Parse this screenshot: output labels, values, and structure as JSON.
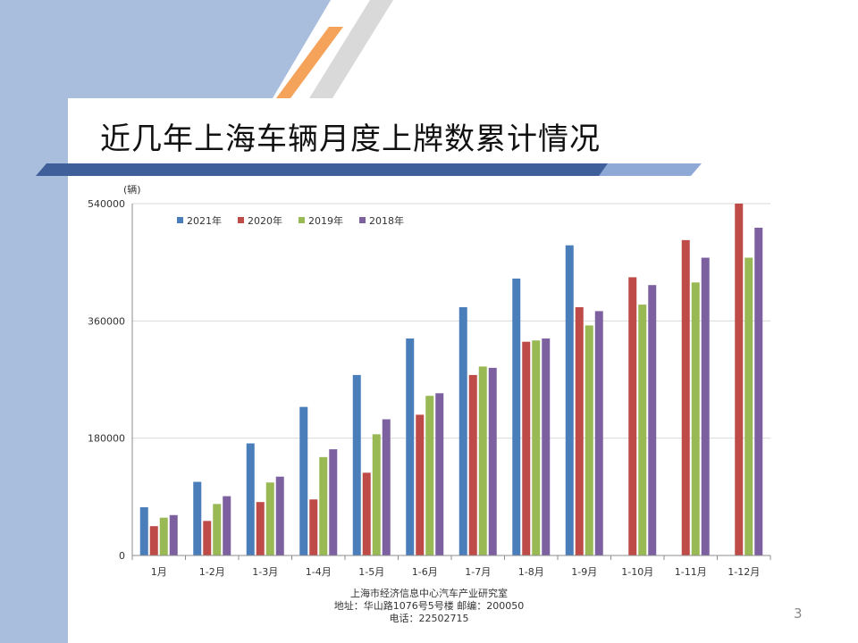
{
  "slide": {
    "title": "近几年上海车辆月度上牌数累计情况",
    "page_number": "3",
    "footer": {
      "line1": "上海市经济信息中心汽车产业研究室",
      "line2": "地址：华山路1076号5号楼    邮编：200050",
      "line3": "电话：22502715"
    },
    "colors": {
      "side_band": "#a9bedd",
      "accent_orange": "#f5a25a",
      "stripe_gray": "#d9d9d9",
      "rule_blue": "#3f5f9a"
    }
  },
  "chart_data": {
    "type": "bar",
    "title": "",
    "xlabel": "",
    "ylabel": "(辆)",
    "ylim": [
      0,
      540000
    ],
    "yticks": [
      0,
      180000,
      360000,
      540000
    ],
    "ytick_labels": [
      "0",
      "180000",
      "360000",
      "540000"
    ],
    "grid": true,
    "legend_position": "top-left",
    "categories": [
      "1月",
      "1-2月",
      "1-3月",
      "1-4月",
      "1-5月",
      "1-6月",
      "1-7月",
      "1-8月",
      "1-9月",
      "1-10月",
      "1-11月",
      "1-12月"
    ],
    "series": [
      {
        "name": "2021年",
        "color": "#4a7ebb",
        "values": [
          74000,
          113000,
          172000,
          228000,
          277000,
          333000,
          381000,
          425000,
          476000,
          null,
          null,
          null
        ]
      },
      {
        "name": "2020年",
        "color": "#be4b48",
        "values": [
          45000,
          53000,
          82000,
          86000,
          127000,
          216000,
          277000,
          328000,
          381000,
          427000,
          484000,
          540000
        ]
      },
      {
        "name": "2019年",
        "color": "#98b954",
        "values": [
          58000,
          79000,
          112000,
          151000,
          186000,
          245000,
          290000,
          330000,
          353000,
          385000,
          419000,
          457000
        ]
      },
      {
        "name": "2018年",
        "color": "#7d60a0",
        "values": [
          62000,
          91000,
          121000,
          163000,
          209000,
          249000,
          288000,
          333000,
          375000,
          415000,
          457000,
          503000
        ]
      }
    ]
  }
}
